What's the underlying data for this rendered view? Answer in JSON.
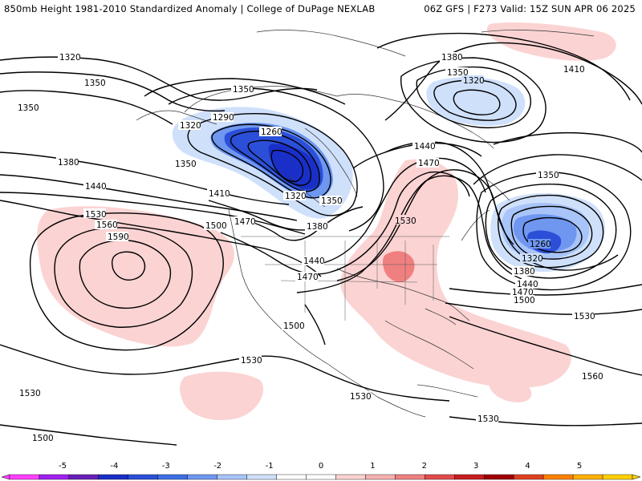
{
  "header": {
    "title_left": "850mb Height 1981-2010 Standardized Anomaly | College of DuPage NEXLAB",
    "title_right": "06Z GFS | F273 Valid: 15Z SUN APR 06 2025"
  },
  "contour_labels": {
    "c1320_nw": "1320",
    "c1350_nw1": "1350",
    "c1350_nw2": "1350",
    "c1380_w": "1380",
    "c1440_w": "1440",
    "c1410_w": "1410",
    "c1530_w": "1530",
    "c1560_w": "1560",
    "c1590_w": "1590",
    "c1500_w": "1500",
    "c1470_w": "1470",
    "c1350_ak": "1350",
    "c1320_ak": "1320",
    "c1290_ak": "1290",
    "c1260_ak": "1260",
    "c1350_ak2": "1350",
    "c1320_c": "1320",
    "c1350_c": "1350",
    "c1380_c": "1380",
    "c1440_c": "1440",
    "c1470_c": "1470",
    "c1500_c": "1500",
    "c1440_cent": "1440",
    "c1470_cent": "1470",
    "c1530_cent": "1530",
    "c1380_ne": "1380",
    "c1350_ne": "1350",
    "c1320_ne": "1320",
    "c1410_ne": "1410",
    "c1350_e": "1350",
    "c1260_e": "1260",
    "c1320_e": "1320",
    "c1380_e": "1380",
    "c1440_e": "1440",
    "c1470_e": "1470",
    "c1500_e": "1500",
    "c1530_e": "1530",
    "c1560_e": "1560",
    "c1530_s": "1530",
    "c1530_sw": "1530",
    "c1530_se": "1530",
    "c1500_sw": "1500",
    "c1530_mex": "1530"
  },
  "colorbar": {
    "ticks": [
      "-5",
      "-4",
      "-3",
      "-2",
      "-1",
      "0",
      "1",
      "2",
      "3",
      "4",
      "5"
    ],
    "colors": [
      "#ff40ff",
      "#a020f0",
      "#6a1fb8",
      "#1a2fc8",
      "#2b4fd8",
      "#3d6fe6",
      "#6f97f0",
      "#a8c4f8",
      "#cfe0fb",
      "#ffffff",
      "#ffffff",
      "#fbd3d3",
      "#f7b0b0",
      "#f08080",
      "#e24a4a",
      "#c81e1e",
      "#a00000",
      "#e04020",
      "#ff8000",
      "#ffb000",
      "#ffd000"
    ]
  }
}
